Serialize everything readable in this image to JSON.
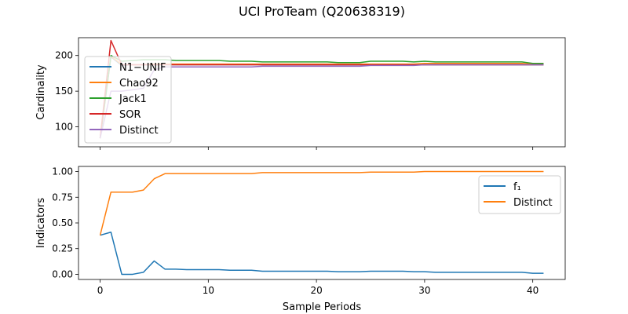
{
  "figure": {
    "title": "UCI ProTeam (Q20638319)"
  },
  "chart_data": [
    {
      "type": "line",
      "ylabel": "Cardinality",
      "xlabel": "",
      "xlim": [
        -2,
        43
      ],
      "ylim": [
        72,
        225
      ],
      "xticks": [
        0,
        10,
        20,
        30,
        40
      ],
      "yticks": [
        100,
        150,
        200
      ],
      "xticklabels_visible": false,
      "grid": false,
      "legend_position": "upper left",
      "x": [
        0,
        1,
        2,
        3,
        4,
        5,
        6,
        7,
        8,
        9,
        10,
        11,
        12,
        13,
        14,
        15,
        16,
        17,
        18,
        19,
        20,
        21,
        22,
        23,
        24,
        25,
        26,
        27,
        28,
        29,
        30,
        31,
        32,
        33,
        34,
        35,
        36,
        37,
        38,
        39,
        40,
        41
      ],
      "series": [
        {
          "name": "N1−UNIF",
          "color": "#1f77b4",
          "values": [
            84,
            198,
            186,
            187,
            187,
            187,
            187,
            187,
            187,
            187,
            187,
            187,
            187,
            187,
            187,
            187,
            187,
            187,
            187,
            187,
            187,
            187,
            187,
            187,
            187,
            187,
            187,
            187,
            187,
            187,
            187,
            187,
            187,
            187,
            187,
            187,
            187,
            187,
            187,
            187,
            187,
            187
          ]
        },
        {
          "name": "Chao92",
          "color": "#ff7f0e",
          "values": [
            84,
            199,
            187,
            187,
            187,
            188,
            188,
            188,
            188,
            188,
            188,
            188,
            188,
            188,
            188,
            188,
            188,
            188,
            188,
            188,
            188,
            188,
            188,
            188,
            188,
            188,
            188,
            188,
            188,
            188,
            189,
            189,
            189,
            189,
            189,
            189,
            189,
            189,
            189,
            189,
            188,
            188
          ]
        },
        {
          "name": "Jack1",
          "color": "#2ca02c",
          "values": [
            84,
            200,
            192,
            193,
            194,
            194,
            194,
            193,
            193,
            193,
            193,
            193,
            192,
            192,
            192,
            191,
            191,
            191,
            191,
            191,
            191,
            191,
            190,
            190,
            190,
            192,
            192,
            192,
            192,
            191,
            192,
            191,
            191,
            191,
            191,
            191,
            191,
            191,
            191,
            191,
            189,
            189
          ]
        },
        {
          "name": "SOR",
          "color": "#d62728",
          "values": [
            84,
            221,
            187,
            187,
            187,
            187,
            187,
            187,
            187,
            187,
            187,
            187,
            187,
            187,
            187,
            187,
            187,
            187,
            187,
            187,
            187,
            187,
            187,
            187,
            187,
            187,
            187,
            187,
            187,
            187,
            187,
            187,
            187,
            187,
            187,
            187,
            187,
            187,
            187,
            187,
            187,
            187
          ]
        },
        {
          "name": "Distinct",
          "color": "#9467bd",
          "values": [
            84,
            150,
            150,
            152,
            154,
            180,
            184,
            184,
            184,
            184,
            184,
            184,
            184,
            184,
            184,
            185,
            185,
            185,
            185,
            185,
            185,
            185,
            185,
            185,
            185,
            186,
            186,
            186,
            186,
            186,
            187,
            187,
            187,
            187,
            187,
            187,
            187,
            187,
            187,
            187,
            187,
            187
          ]
        }
      ]
    },
    {
      "type": "line",
      "ylabel": "Indicators",
      "xlabel": "Sample Periods",
      "xlim": [
        -2,
        43
      ],
      "ylim": [
        -0.05,
        1.05
      ],
      "xticks": [
        0,
        10,
        20,
        30,
        40
      ],
      "yticks": [
        0.0,
        0.25,
        0.5,
        0.75,
        1.0
      ],
      "ytick_format": 2,
      "grid": false,
      "legend_position": "upper right",
      "x": [
        0,
        1,
        2,
        3,
        4,
        5,
        6,
        7,
        8,
        9,
        10,
        11,
        12,
        13,
        14,
        15,
        16,
        17,
        18,
        19,
        20,
        21,
        22,
        23,
        24,
        25,
        26,
        27,
        28,
        29,
        30,
        31,
        32,
        33,
        34,
        35,
        36,
        37,
        38,
        39,
        40,
        41
      ],
      "series": [
        {
          "name": "f₁",
          "color": "#1f77b4",
          "values": [
            0.38,
            0.41,
            0.0,
            0.0,
            0.02,
            0.13,
            0.05,
            0.05,
            0.045,
            0.045,
            0.045,
            0.045,
            0.04,
            0.04,
            0.04,
            0.03,
            0.03,
            0.03,
            0.03,
            0.03,
            0.03,
            0.03,
            0.025,
            0.025,
            0.025,
            0.03,
            0.03,
            0.03,
            0.03,
            0.025,
            0.025,
            0.02,
            0.02,
            0.02,
            0.02,
            0.02,
            0.02,
            0.02,
            0.02,
            0.02,
            0.01,
            0.01
          ]
        },
        {
          "name": "Distinct",
          "color": "#ff7f0e",
          "values": [
            0.38,
            0.8,
            0.8,
            0.8,
            0.82,
            0.93,
            0.98,
            0.98,
            0.98,
            0.98,
            0.98,
            0.98,
            0.98,
            0.98,
            0.98,
            0.99,
            0.99,
            0.99,
            0.99,
            0.99,
            0.99,
            0.99,
            0.99,
            0.99,
            0.99,
            0.995,
            0.995,
            0.995,
            0.995,
            0.995,
            1.0,
            1.0,
            1.0,
            1.0,
            1.0,
            1.0,
            1.0,
            1.0,
            1.0,
            1.0,
            1.0,
            1.0
          ]
        }
      ]
    }
  ]
}
